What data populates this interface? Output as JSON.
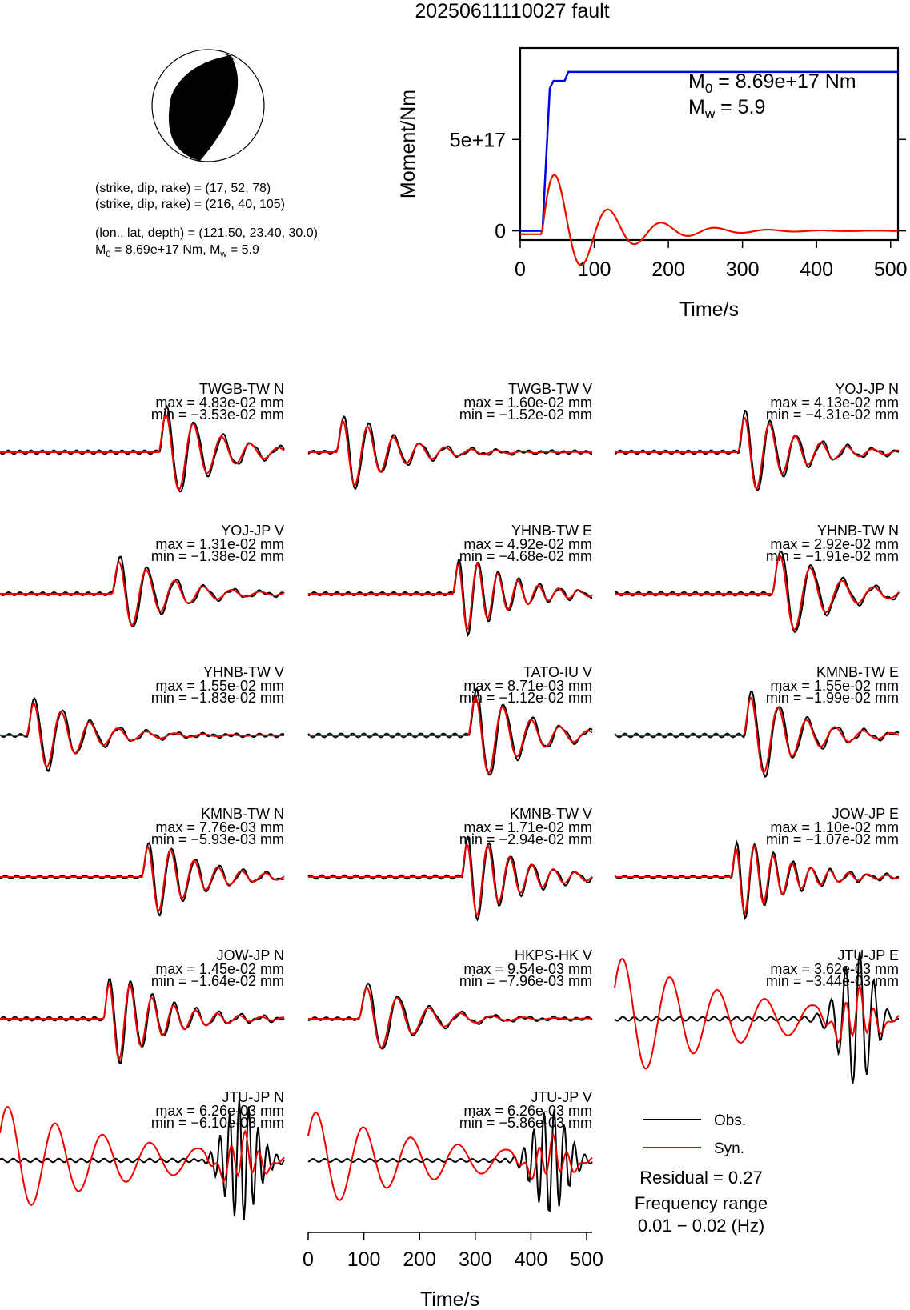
{
  "title": "20250611110027 fault",
  "beachball": {
    "lines": [
      "(strike, dip, rake) = (17, 52, 78)",
      "(strike, dip, rake) = (216, 40, 105)",
      "(lon., lat, depth) = (121.50, 23.40, 30.0)"
    ],
    "m0_line": {
      "prefix": "M",
      "sub0": "0",
      "mid": " = 8.69e+17 Nm, M",
      "subw": "w",
      "suffix": " = 5.9"
    }
  },
  "moment_plot": {
    "ylabel": "Moment/Nm",
    "xlabel": "Time/s",
    "xticks": [
      "0",
      "100",
      "200",
      "300",
      "400",
      "500"
    ],
    "yticks": [
      "0",
      "5e+17"
    ],
    "m0_label": {
      "prefix": "M",
      "sub": "0",
      "suffix": " = 8.69e+17 Nm"
    },
    "mw_label": {
      "prefix": "M",
      "sub": "w",
      "suffix": " = 5.9"
    },
    "colors": {
      "cumulative": "#0000ee",
      "rate": "#ff0000",
      "rate2": "#00cc00"
    }
  },
  "traces_xaxis": {
    "label": "Time/s",
    "ticks": [
      "0",
      "100",
      "200",
      "300",
      "400",
      "500"
    ]
  },
  "legend": {
    "obs": "Obs.",
    "syn": "Syn.",
    "residual": "Residual = 0.27",
    "freq_title": "Frequency range",
    "freq_value": "0.01 − 0.02 (Hz)"
  },
  "colors": {
    "obs": "#000000",
    "syn": "#ee0000"
  },
  "chart_data": [
    {
      "type": "line",
      "title": "",
      "xlabel": "Time/s",
      "ylabel": "Moment/Nm",
      "xlim": [
        0,
        510
      ],
      "series": [
        {
          "name": "M0",
          "x": [
            0,
            30,
            40,
            45,
            60,
            65,
            75,
            510
          ],
          "values": [
            0,
            0,
            7.8e+17,
            8.2e+17,
            8.2e+17,
            8.69e+17,
            8.69e+17,
            8.69e+17
          ]
        }
      ]
    },
    {
      "type": "line",
      "stations": [
        {
          "name": "TWGB-TW N",
          "max": "max = 4.83e-02 mm",
          "min": "min = −3.53e-02 mm"
        },
        {
          "name": "TWGB-TW V",
          "max": "max = 1.60e-02 mm",
          "min": "min = −1.52e-02 mm"
        },
        {
          "name": "YOJ-JP N",
          "max": "max = 4.13e-02 mm",
          "min": "min = −4.31e-02 mm"
        },
        {
          "name": "YOJ-JP V",
          "max": "max = 1.31e-02 mm",
          "min": "min = −1.38e-02 mm"
        },
        {
          "name": "YHNB-TW E",
          "max": "max = 4.92e-02 mm",
          "min": "min = −4.68e-02 mm"
        },
        {
          "name": "YHNB-TW N",
          "max": "max = 2.92e-02 mm",
          "min": "min = −1.91e-02 mm"
        },
        {
          "name": "YHNB-TW V",
          "max": "max = 1.55e-02 mm",
          "min": "min = −1.83e-02 mm"
        },
        {
          "name": "TATO-IU V",
          "max": "max = 8.71e-03 mm",
          "min": "min = −1.12e-02 mm"
        },
        {
          "name": "KMNB-TW E",
          "max": "max = 1.55e-02 mm",
          "min": "min = −1.99e-02 mm"
        },
        {
          "name": "KMNB-TW N",
          "max": "max = 7.76e-03 mm",
          "min": "min = −5.93e-03 mm"
        },
        {
          "name": "KMNB-TW V",
          "max": "max = 1.71e-02 mm",
          "min": "min = −2.94e-02 mm"
        },
        {
          "name": "JOW-JP E",
          "max": "max = 1.10e-02 mm",
          "min": "min = −1.07e-02 mm"
        },
        {
          "name": "JOW-JP N",
          "max": "max = 1.45e-02 mm",
          "min": "min = −1.64e-02 mm"
        },
        {
          "name": "HKPS-HK V",
          "max": "max = 9.54e-03 mm",
          "min": "min = −7.96e-03 mm"
        },
        {
          "name": "JTU-JP E",
          "max": "max = 3.62e-03 mm",
          "min": "min = −3.44e-03 mm"
        },
        {
          "name": "JTU-JP N",
          "max": "max = 6.26e-03 mm",
          "min": "min = −6.10e-03 mm"
        },
        {
          "name": "JTU-JP V",
          "max": "max = 6.26e-03 mm",
          "min": "min = −5.86e-03 mm"
        }
      ]
    }
  ]
}
